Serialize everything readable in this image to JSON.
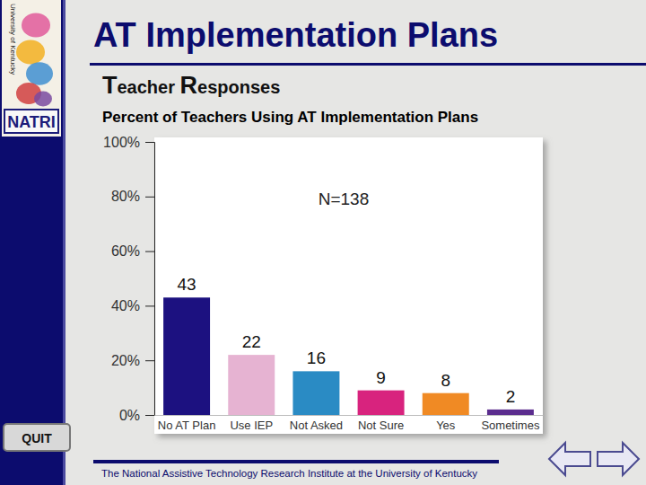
{
  "chart_data": {
    "type": "bar",
    "title": "Percent of Teachers Using AT Implementation Plans",
    "categories": [
      "No AT Plan",
      "Use IEP",
      "Not Asked",
      "Not Sure",
      "Yes",
      "Sometimes"
    ],
    "values": [
      43,
      22,
      16,
      9,
      8,
      2
    ],
    "colors": [
      "#1c1180",
      "#e6b3d2",
      "#2a8bc4",
      "#d8237e",
      "#f08a24",
      "#5b2d8e"
    ],
    "ylim": [
      0,
      100
    ],
    "yticks": [
      {
        "value": 0,
        "label": "0%"
      },
      {
        "value": 20,
        "label": "20%"
      },
      {
        "value": 40,
        "label": "40%"
      },
      {
        "value": 60,
        "label": "60%"
      },
      {
        "value": 80,
        "label": "80%"
      },
      {
        "value": 100,
        "label": "100%"
      }
    ],
    "grid": false,
    "data_labels": true,
    "annotations": [
      "N=138"
    ]
  },
  "slide": {
    "title": "AT Implementation Plans",
    "subtitle": "Teacher Responses",
    "footer": "The National Assistive Technology Research Institute at the University of Kentucky",
    "button": "QUIT",
    "logo": {
      "name": "NATRI",
      "university": "University of Kentucky"
    }
  }
}
